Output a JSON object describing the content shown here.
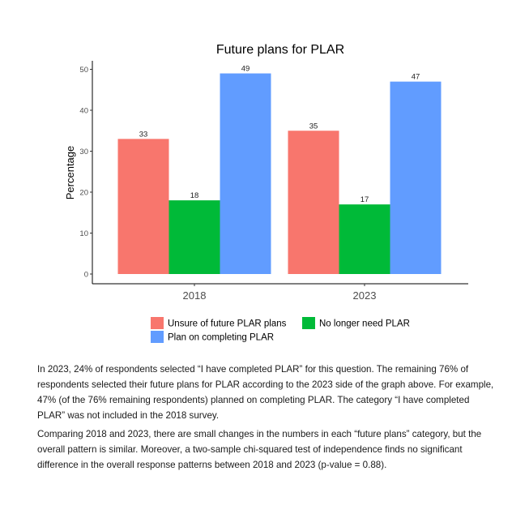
{
  "chart_data": {
    "type": "bar",
    "title": "Future plans for PLAR",
    "xlabel": "",
    "ylabel": "Percentage",
    "categories": [
      "2018",
      "2023"
    ],
    "series": [
      {
        "name": "Unsure of future PLAR plans",
        "color": "#F8766D",
        "values": [
          33,
          35
        ]
      },
      {
        "name": "No longer need PLAR",
        "color": "#00BA38",
        "values": [
          18,
          17
        ]
      },
      {
        "name": "Plan on completing PLAR",
        "color": "#619CFF",
        "values": [
          49,
          47
        ]
      }
    ],
    "ylim": [
      0,
      50
    ],
    "yticks": [
      0,
      10,
      20,
      30,
      40,
      50
    ],
    "grid": false,
    "legend_position": "bottom"
  },
  "text": {
    "paragraph1": "In 2023, 24% of respondents selected “I have completed PLAR” for this question. The remaining 76% of respondents selected their future plans for PLAR according to the 2023 side of the graph above. For example, 47% (of the 76% remaining respondents) planned on completing PLAR. The category “I have completed PLAR” was not included in the 2018 survey.",
    "paragraph2": "Comparing 2018 and 2023, there are small changes in the numbers in each “future plans” category, but the overall pattern is similar. Moreover, a two-sample chi-squared test of independence finds no significant difference in the overall response patterns between 2018 and 2023 (p-value = 0.88)."
  }
}
